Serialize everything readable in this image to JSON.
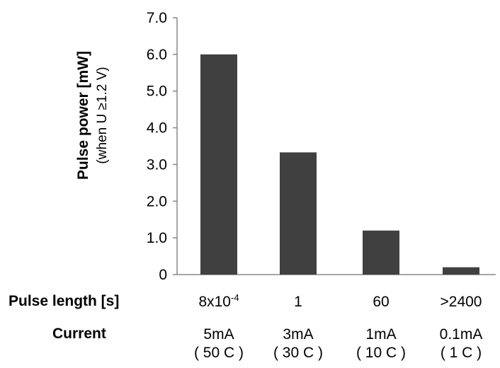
{
  "chart_data": {
    "type": "bar",
    "title": "",
    "ylabel": "Pulse power [mW]",
    "ylabel_sub": "(when U ≥1.2 V)",
    "ylim": [
      0,
      7
    ],
    "yticks": [
      "0",
      "1.0",
      "2.0",
      "3.0",
      "4.0",
      "5.0",
      "6.0",
      "7.0"
    ],
    "grid": false,
    "bar_color": "#404040",
    "categories": [
      "8x10-4",
      "1",
      "60",
      ">2400"
    ],
    "values": [
      6.0,
      3.33,
      1.2,
      0.2
    ]
  },
  "rows": {
    "pulse_length_label": "Pulse length [s]",
    "pulse_lengths": [
      {
        "base": "8x10",
        "exp": "-4"
      },
      {
        "base": "1",
        "exp": ""
      },
      {
        "base": "60",
        "exp": ""
      },
      {
        "base": ">2400",
        "exp": ""
      }
    ],
    "current_label": "Current",
    "currents": [
      {
        "value": "5mA",
        "rate": "( 50 C )"
      },
      {
        "value": "3mA",
        "rate": "( 30 C )"
      },
      {
        "value": "1mA",
        "rate": "( 10 C )"
      },
      {
        "value": "0.1mA",
        "rate": "( 1 C )"
      }
    ]
  }
}
